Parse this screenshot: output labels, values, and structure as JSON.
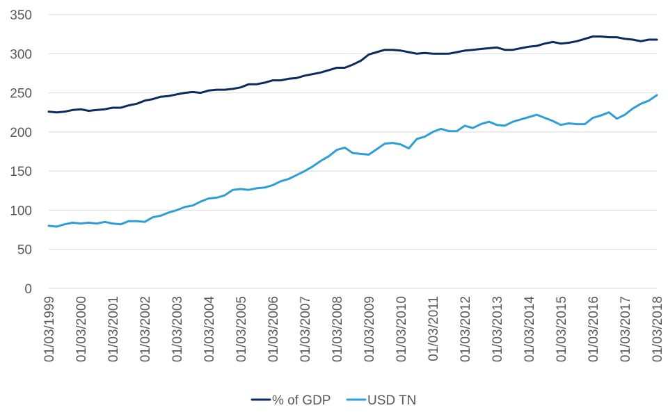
{
  "chart_data": {
    "type": "line",
    "title": "",
    "xlabel": "",
    "ylabel": "",
    "ylim": [
      0,
      350
    ],
    "yticks": [
      0,
      50,
      100,
      150,
      200,
      250,
      300,
      350
    ],
    "grid": true,
    "legend_position": "bottom",
    "x_tick_labels": [
      "01/03/1999",
      "01/03/2000",
      "01/03/2001",
      "01/03/2002",
      "01/03/2003",
      "01/03/2004",
      "01/03/2005",
      "01/03/2006",
      "01/03/2007",
      "01/03/2008",
      "01/03/2009",
      "01/03/2010",
      "01/03/2011",
      "01/03/2012",
      "01/03/2013",
      "01/03/2014",
      "01/03/2015",
      "01/03/2016",
      "01/03/2017",
      "01/03/2018"
    ],
    "x": [
      "1999Q1",
      "1999Q2",
      "1999Q3",
      "1999Q4",
      "2000Q1",
      "2000Q2",
      "2000Q3",
      "2000Q4",
      "2001Q1",
      "2001Q2",
      "2001Q3",
      "2001Q4",
      "2002Q1",
      "2002Q2",
      "2002Q3",
      "2002Q4",
      "2003Q1",
      "2003Q2",
      "2003Q3",
      "2003Q4",
      "2004Q1",
      "2004Q2",
      "2004Q3",
      "2004Q4",
      "2005Q1",
      "2005Q2",
      "2005Q3",
      "2005Q4",
      "2006Q1",
      "2006Q2",
      "2006Q3",
      "2006Q4",
      "2007Q1",
      "2007Q2",
      "2007Q3",
      "2007Q4",
      "2008Q1",
      "2008Q2",
      "2008Q3",
      "2008Q4",
      "2009Q1",
      "2009Q2",
      "2009Q3",
      "2009Q4",
      "2010Q1",
      "2010Q2",
      "2010Q3",
      "2010Q4",
      "2011Q1",
      "2011Q2",
      "2011Q3",
      "2011Q4",
      "2012Q1",
      "2012Q2",
      "2012Q3",
      "2012Q4",
      "2013Q1",
      "2013Q2",
      "2013Q3",
      "2013Q4",
      "2014Q1",
      "2014Q2",
      "2014Q3",
      "2014Q4",
      "2015Q1",
      "2015Q2",
      "2015Q3",
      "2015Q4",
      "2016Q1",
      "2016Q2",
      "2016Q3",
      "2016Q4",
      "2017Q1",
      "2017Q2",
      "2017Q3",
      "2017Q4",
      "2018Q1"
    ],
    "series": [
      {
        "name": "% of GDP",
        "color": "#0c2a5b",
        "values": [
          226,
          225,
          226,
          228,
          229,
          227,
          228,
          229,
          231,
          231,
          234,
          236,
          240,
          242,
          245,
          246,
          248,
          250,
          251,
          250,
          253,
          254,
          254,
          255,
          257,
          261,
          261,
          263,
          266,
          266,
          268,
          269,
          272,
          274,
          276,
          279,
          282,
          282,
          286,
          291,
          299,
          302,
          305,
          305,
          304,
          302,
          300,
          301,
          300,
          300,
          300,
          302,
          304,
          305,
          306,
          307,
          308,
          305,
          305,
          307,
          309,
          310,
          313,
          315,
          313,
          314,
          316,
          319,
          322,
          322,
          321,
          321,
          319,
          318,
          316,
          318,
          318
        ]
      },
      {
        "name": "USD TN",
        "color": "#2e9fd6",
        "values": [
          80,
          79,
          82,
          84,
          83,
          84,
          83,
          85,
          83,
          82,
          86,
          86,
          85,
          91,
          93,
          97,
          100,
          104,
          106,
          111,
          115,
          116,
          119,
          126,
          127,
          126,
          128,
          129,
          132,
          137,
          140,
          145,
          150,
          156,
          163,
          169,
          177,
          180,
          173,
          172,
          171,
          178,
          185,
          186,
          184,
          179,
          191,
          194,
          200,
          204,
          201,
          201,
          208,
          205,
          210,
          213,
          209,
          208,
          213,
          216,
          219,
          222,
          218,
          214,
          209,
          211,
          210,
          210,
          218,
          221,
          225,
          217,
          222,
          230,
          236,
          240,
          247
        ]
      }
    ]
  }
}
